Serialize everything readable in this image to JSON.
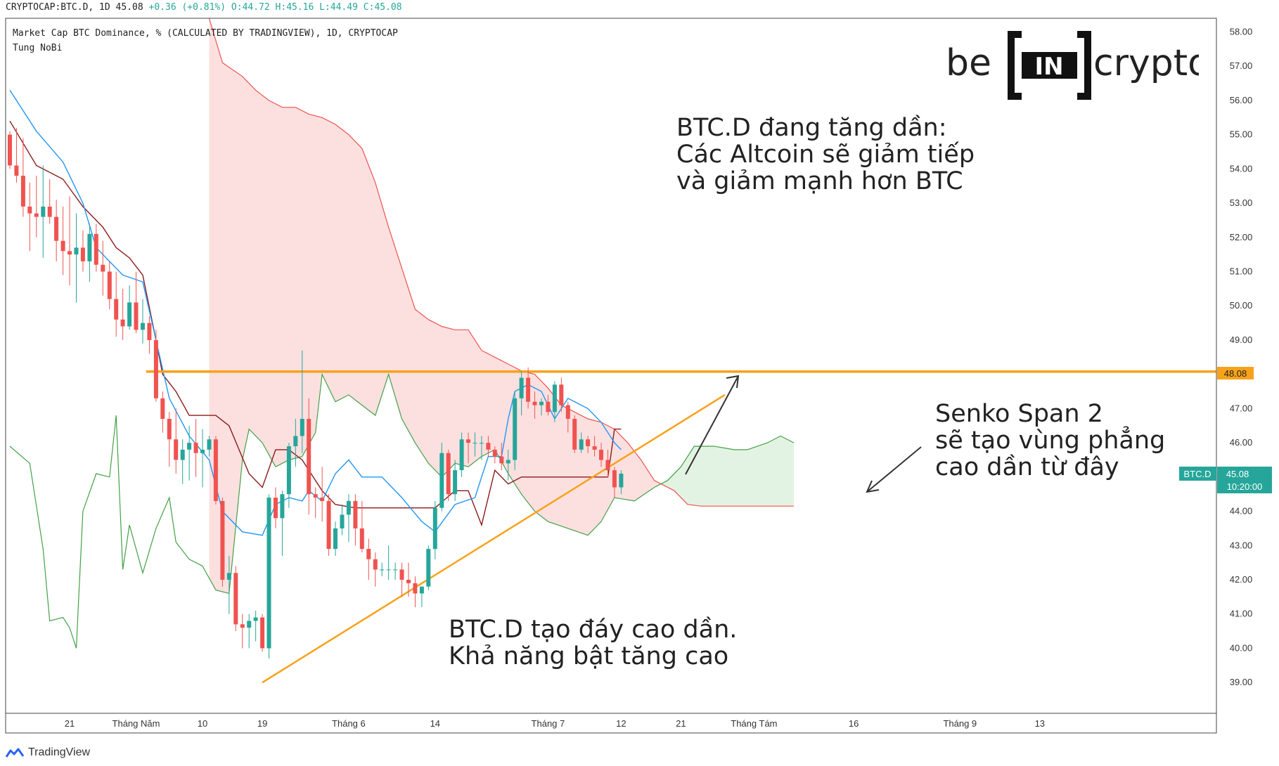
{
  "header": {
    "symbol": "CRYPTOCAP:BTC.D, 1D",
    "last": "45.08",
    "change": "+0.36 (+0.81%)",
    "ohlc_o": "O:44.72",
    "ohlc_h": "H:45.16",
    "ohlc_l": "L:44.49",
    "ohlc_c": "C:45.08",
    "description": "Market Cap BTC Dominance, % (CALCULATED BY TRADINGVIEW), 1D, CRYPTOCAP",
    "author": "Tung NoBi"
  },
  "logo": {
    "left": "be",
    "mid": "IN",
    "right": "crypto"
  },
  "annotations": {
    "top": [
      "BTC.D đang tăng dần:",
      "Các Altcoin sẽ giảm tiếp",
      "và giảm mạnh hơn BTC"
    ],
    "right": [
      "Senko Span 2",
      "sẽ tạo vùng phẳng",
      "cao dần từ đây"
    ],
    "bottom": [
      "BTC.D tạo đáy cao dần.",
      "Khả năng bật tăng cao"
    ]
  },
  "price_tags": {
    "resistance": "48.08",
    "symbol": "BTC.D",
    "last": "45.08",
    "countdown": "10:20:00"
  },
  "brand": "TradingView",
  "colors": {
    "up": "#26a69a",
    "down": "#ef5350",
    "tenkan": "#2196f3",
    "kijun": "#8b1a1a",
    "span_a": "#43a047",
    "span_b": "#ef5350",
    "cloud_bear": "#fbd5d5",
    "cloud_bull": "#e0f2e0",
    "resistance": "#f7a21b",
    "trendline": "#f7a21b"
  },
  "chart_data": {
    "type": "candlestick",
    "y_range": [
      38.1,
      58.4
    ],
    "y_ticks": [
      "58.00",
      "57.00",
      "56.00",
      "55.00",
      "54.00",
      "53.00",
      "52.00",
      "51.00",
      "50.00",
      "49.00",
      "48.00",
      "47.00",
      "46.00",
      "45.00",
      "44.00",
      "43.00",
      "42.00",
      "41.00",
      "40.00",
      "39.00"
    ],
    "x_ticks": [
      {
        "label": "21",
        "i": 9
      },
      {
        "label": "Tháng Năm",
        "i": 19
      },
      {
        "label": "10",
        "i": 29
      },
      {
        "label": "19",
        "i": 38
      },
      {
        "label": "Tháng 6",
        "i": 51
      },
      {
        "label": "14",
        "i": 64
      },
      {
        "label": "Tháng 7",
        "i": 81
      },
      {
        "label": "12",
        "i": 92
      },
      {
        "label": "21",
        "i": 101
      },
      {
        "label": "Tháng Tám",
        "i": 112
      },
      {
        "label": "16",
        "i": 127
      },
      {
        "label": "Tháng 9",
        "i": 143
      },
      {
        "label": "13",
        "i": 155
      }
    ],
    "candles": [
      [
        55.0,
        55.1,
        54.0,
        54.1
      ],
      [
        54.1,
        55.2,
        53.6,
        53.8
      ],
      [
        53.8,
        54.9,
        52.6,
        52.9
      ],
      [
        52.9,
        53.6,
        51.6,
        52.7
      ],
      [
        52.7,
        53.8,
        52.0,
        52.6
      ],
      [
        52.6,
        54.1,
        51.4,
        52.9
      ],
      [
        52.9,
        53.7,
        52.4,
        52.6
      ],
      [
        52.6,
        53.1,
        51.3,
        51.9
      ],
      [
        51.9,
        52.9,
        50.9,
        51.6
      ],
      [
        51.6,
        53.2,
        50.6,
        51.5
      ],
      [
        51.5,
        52.7,
        50.1,
        51.7
      ],
      [
        51.7,
        52.2,
        51.0,
        51.3
      ],
      [
        51.3,
        52.4,
        50.7,
        52.1
      ],
      [
        52.1,
        52.4,
        51.0,
        51.2
      ],
      [
        51.2,
        51.9,
        50.3,
        51.0
      ],
      [
        51.0,
        51.3,
        49.9,
        50.2
      ],
      [
        50.2,
        51.0,
        49.1,
        49.6
      ],
      [
        49.6,
        50.5,
        49.0,
        49.4
      ],
      [
        49.4,
        50.6,
        49.3,
        50.1
      ],
      [
        50.1,
        51.0,
        49.2,
        49.3
      ],
      [
        49.3,
        50.2,
        48.9,
        49.5
      ],
      [
        49.5,
        49.7,
        48.6,
        49.0
      ],
      [
        49.0,
        49.3,
        47.2,
        47.3
      ],
      [
        47.3,
        47.5,
        46.3,
        46.7
      ],
      [
        46.7,
        46.9,
        45.3,
        46.1
      ],
      [
        46.1,
        47.0,
        45.1,
        45.5
      ],
      [
        45.5,
        46.1,
        44.8,
        45.8
      ],
      [
        45.8,
        46.5,
        44.9,
        46.0
      ],
      [
        46.0,
        46.7,
        45.0,
        45.7
      ],
      [
        45.7,
        46.4,
        44.7,
        45.8
      ],
      [
        45.8,
        46.2,
        45.6,
        46.1
      ],
      [
        46.1,
        46.2,
        44.2,
        44.3
      ],
      [
        44.3,
        44.4,
        41.8,
        42.0
      ],
      [
        42.0,
        42.7,
        41.0,
        42.2
      ],
      [
        42.2,
        42.4,
        40.5,
        40.7
      ],
      [
        40.7,
        41.0,
        40.0,
        40.6
      ],
      [
        40.6,
        41.0,
        40.0,
        40.8
      ],
      [
        40.8,
        41.1,
        40.2,
        40.9
      ],
      [
        40.9,
        41.0,
        39.9,
        40.0
      ],
      [
        40.0,
        44.5,
        39.7,
        44.4
      ],
      [
        44.4,
        44.7,
        43.5,
        43.8
      ],
      [
        43.8,
        44.6,
        42.7,
        44.5
      ],
      [
        44.5,
        46.0,
        44.1,
        45.9
      ],
      [
        45.9,
        46.7,
        45.3,
        46.2
      ],
      [
        46.2,
        48.7,
        45.7,
        46.7
      ],
      [
        46.7,
        47.3,
        43.9,
        44.5
      ],
      [
        44.5,
        44.7,
        43.8,
        44.4
      ],
      [
        44.4,
        45.3,
        43.7,
        44.3
      ],
      [
        44.3,
        44.5,
        42.7,
        42.9
      ],
      [
        42.9,
        43.7,
        42.7,
        43.5
      ],
      [
        43.5,
        44.2,
        43.3,
        43.9
      ],
      [
        43.9,
        44.5,
        43.1,
        44.3
      ],
      [
        44.3,
        44.5,
        43.0,
        43.5
      ],
      [
        43.5,
        44.3,
        42.8,
        42.9
      ],
      [
        42.9,
        43.2,
        42.0,
        42.6
      ],
      [
        42.6,
        42.8,
        41.8,
        42.3
      ],
      [
        42.3,
        42.5,
        42.1,
        42.3
      ],
      [
        42.3,
        43.0,
        42.0,
        42.3
      ],
      [
        42.3,
        42.5,
        42.0,
        42.3
      ],
      [
        42.3,
        42.5,
        41.5,
        42.0
      ],
      [
        42.0,
        42.5,
        41.5,
        41.9
      ],
      [
        41.9,
        42.1,
        41.2,
        41.6
      ],
      [
        41.6,
        41.8,
        41.2,
        41.8
      ],
      [
        41.8,
        43.0,
        41.7,
        42.9
      ],
      [
        42.9,
        44.3,
        42.6,
        44.1
      ],
      [
        44.1,
        46.0,
        44.0,
        45.7
      ],
      [
        45.7,
        45.8,
        44.3,
        44.5
      ],
      [
        44.5,
        45.5,
        44.3,
        45.2
      ],
      [
        45.2,
        46.3,
        45.0,
        46.1
      ],
      [
        46.1,
        46.3,
        45.4,
        46.0
      ],
      [
        46.0,
        46.3,
        45.6,
        46.0
      ],
      [
        46.0,
        46.2,
        45.5,
        46.0
      ],
      [
        46.0,
        46.2,
        45.6,
        45.8
      ],
      [
        45.8,
        45.9,
        45.4,
        45.6
      ],
      [
        45.6,
        46.0,
        45.2,
        45.4
      ],
      [
        45.4,
        45.8,
        44.9,
        45.5
      ],
      [
        45.5,
        47.5,
        45.2,
        47.3
      ],
      [
        47.3,
        48.1,
        46.8,
        47.9
      ],
      [
        47.9,
        48.2,
        47.0,
        47.2
      ],
      [
        47.2,
        47.5,
        46.7,
        47.1
      ],
      [
        47.1,
        47.3,
        46.8,
        47.2
      ],
      [
        47.2,
        47.4,
        46.8,
        46.9
      ],
      [
        46.9,
        47.8,
        46.6,
        47.7
      ],
      [
        47.7,
        47.9,
        46.9,
        47.1
      ],
      [
        47.1,
        47.2,
        46.3,
        46.7
      ],
      [
        46.7,
        46.8,
        45.7,
        45.8
      ],
      [
        45.8,
        46.3,
        45.7,
        46.1
      ],
      [
        46.1,
        46.2,
        45.7,
        45.9
      ],
      [
        45.9,
        46.2,
        45.6,
        45.8
      ],
      [
        45.8,
        46.0,
        45.3,
        45.5
      ],
      [
        45.5,
        45.8,
        45.0,
        45.2
      ],
      [
        45.2,
        45.3,
        44.4,
        44.7
      ],
      [
        44.7,
        45.2,
        44.5,
        45.1
      ]
    ],
    "resistance": 48.08,
    "trendline": [
      [
        38.0,
        39.0
      ],
      [
        107.6,
        47.4
      ]
    ],
    "tenkan": [
      [
        0,
        56.3
      ],
      [
        4,
        55.1
      ],
      [
        8,
        54.2
      ],
      [
        11,
        53.0
      ],
      [
        13,
        51.7
      ],
      [
        17,
        50.9
      ],
      [
        20,
        50.7
      ],
      [
        22,
        49.0
      ],
      [
        24,
        47.3
      ],
      [
        27,
        46.2
      ],
      [
        30,
        45.5
      ],
      [
        32,
        44.0
      ],
      [
        35,
        43.4
      ],
      [
        38,
        43.3
      ],
      [
        40,
        44.2
      ],
      [
        42,
        44.4
      ],
      [
        44,
        44.3
      ],
      [
        45,
        44.6
      ],
      [
        47,
        44.3
      ],
      [
        49,
        45.1
      ],
      [
        51,
        45.5
      ],
      [
        53,
        45.0
      ],
      [
        56,
        45.0
      ],
      [
        59,
        44.4
      ],
      [
        62,
        43.7
      ],
      [
        64,
        43.4
      ],
      [
        67,
        44.2
      ],
      [
        70,
        44.4
      ],
      [
        71,
        45.0
      ],
      [
        72,
        45.6
      ],
      [
        74,
        45.6
      ],
      [
        75,
        46.7
      ],
      [
        76,
        47.5
      ],
      [
        78,
        47.7
      ],
      [
        80,
        47.5
      ],
      [
        82,
        46.7
      ],
      [
        84,
        47.3
      ],
      [
        87,
        47.0
      ],
      [
        89,
        46.6
      ],
      [
        91,
        46.0
      ],
      [
        92,
        45.8
      ]
    ],
    "kijun": [
      [
        0,
        55.4
      ],
      [
        4,
        54.1
      ],
      [
        8,
        53.7
      ],
      [
        11,
        52.9
      ],
      [
        14,
        52.3
      ],
      [
        16,
        51.7
      ],
      [
        18,
        51.4
      ],
      [
        20,
        50.9
      ],
      [
        22,
        49.0
      ],
      [
        23,
        48.0
      ],
      [
        25,
        47.5
      ],
      [
        27,
        46.8
      ],
      [
        29,
        46.8
      ],
      [
        31,
        46.8
      ],
      [
        33,
        46.5
      ],
      [
        36,
        45.1
      ],
      [
        38,
        44.7
      ],
      [
        40,
        45.8
      ],
      [
        42,
        45.8
      ],
      [
        44,
        45.5
      ],
      [
        47,
        44.6
      ],
      [
        49,
        44.2
      ],
      [
        52,
        44.1
      ],
      [
        54,
        44.1
      ],
      [
        59,
        44.1
      ],
      [
        62,
        44.1
      ],
      [
        64,
        44.1
      ],
      [
        67,
        44.6
      ],
      [
        69,
        44.6
      ],
      [
        71,
        43.6
      ],
      [
        73,
        45.2
      ],
      [
        75,
        44.8
      ],
      [
        77,
        45.0
      ],
      [
        80,
        45.0
      ],
      [
        84,
        45.0
      ],
      [
        88,
        45.0
      ],
      [
        90,
        45.0
      ],
      [
        91,
        46.4
      ],
      [
        92,
        46.4
      ]
    ],
    "span_a": [
      [
        0,
        45.9
      ],
      [
        3,
        45.4
      ],
      [
        5,
        42.9
      ],
      [
        6,
        40.8
      ],
      [
        8,
        40.9
      ],
      [
        9,
        40.6
      ],
      [
        10,
        40.0
      ],
      [
        11,
        44.0
      ],
      [
        13,
        45.1
      ],
      [
        15,
        45.0
      ],
      [
        16,
        46.8
      ],
      [
        17,
        42.3
      ],
      [
        18,
        43.6
      ],
      [
        20,
        42.2
      ],
      [
        22,
        43.5
      ],
      [
        24,
        44.4
      ],
      [
        25,
        43.1
      ],
      [
        27,
        42.6
      ],
      [
        29,
        42.4
      ],
      [
        31,
        41.7
      ],
      [
        33,
        41.6
      ],
      [
        35,
        45.5
      ],
      [
        36,
        46.4
      ],
      [
        38,
        46.0
      ],
      [
        40,
        45.3
      ],
      [
        42,
        45.5
      ],
      [
        44,
        45.6
      ],
      [
        46,
        46.3
      ],
      [
        47,
        48.0
      ],
      [
        49,
        47.2
      ],
      [
        51,
        47.4
      ],
      [
        53,
        47.1
      ],
      [
        55,
        46.8
      ],
      [
        57,
        48.0
      ],
      [
        59,
        46.7
      ],
      [
        61,
        46.0
      ],
      [
        63,
        45.4
      ],
      [
        65,
        45.0
      ],
      [
        67,
        45.4
      ],
      [
        69,
        45.3
      ],
      [
        71,
        45.6
      ],
      [
        73,
        45.8
      ],
      [
        75,
        45.1
      ],
      [
        77,
        44.5
      ],
      [
        79,
        44.0
      ],
      [
        81,
        43.7
      ],
      [
        84,
        43.5
      ],
      [
        87,
        43.3
      ],
      [
        89,
        43.7
      ],
      [
        91,
        44.4
      ],
      [
        94,
        44.3
      ],
      [
        97,
        44.7
      ],
      [
        99,
        44.9
      ],
      [
        101,
        45.3
      ],
      [
        103,
        45.9
      ],
      [
        106,
        45.9
      ],
      [
        109,
        45.8
      ],
      [
        111,
        45.8
      ],
      [
        114,
        46.0
      ],
      [
        116,
        46.2
      ],
      [
        118,
        46.0
      ]
    ],
    "span_b": [
      [
        30,
        58.4
      ],
      [
        32,
        57.1
      ],
      [
        35,
        56.7
      ],
      [
        37,
        56.3
      ],
      [
        39,
        56.0
      ],
      [
        41,
        55.8
      ],
      [
        43,
        55.8
      ],
      [
        45,
        55.6
      ],
      [
        47,
        55.5
      ],
      [
        49,
        55.3
      ],
      [
        51,
        55.0
      ],
      [
        53,
        54.6
      ],
      [
        55,
        53.6
      ],
      [
        57,
        52.3
      ],
      [
        59,
        51.1
      ],
      [
        61,
        49.9
      ],
      [
        63,
        49.6
      ],
      [
        65,
        49.4
      ],
      [
        67,
        49.3
      ],
      [
        69,
        49.3
      ],
      [
        71,
        48.7
      ],
      [
        73,
        48.5
      ],
      [
        75,
        48.3
      ],
      [
        77,
        48.1
      ],
      [
        79,
        48.0
      ],
      [
        81,
        47.6
      ],
      [
        83,
        47.1
      ],
      [
        85,
        46.9
      ],
      [
        87,
        46.7
      ],
      [
        89,
        46.6
      ],
      [
        91,
        46.4
      ],
      [
        93,
        46.0
      ],
      [
        95,
        45.5
      ],
      [
        97,
        44.9
      ],
      [
        100,
        44.6
      ],
      [
        102,
        44.2
      ],
      [
        104,
        44.15
      ],
      [
        118,
        44.15
      ]
    ]
  }
}
